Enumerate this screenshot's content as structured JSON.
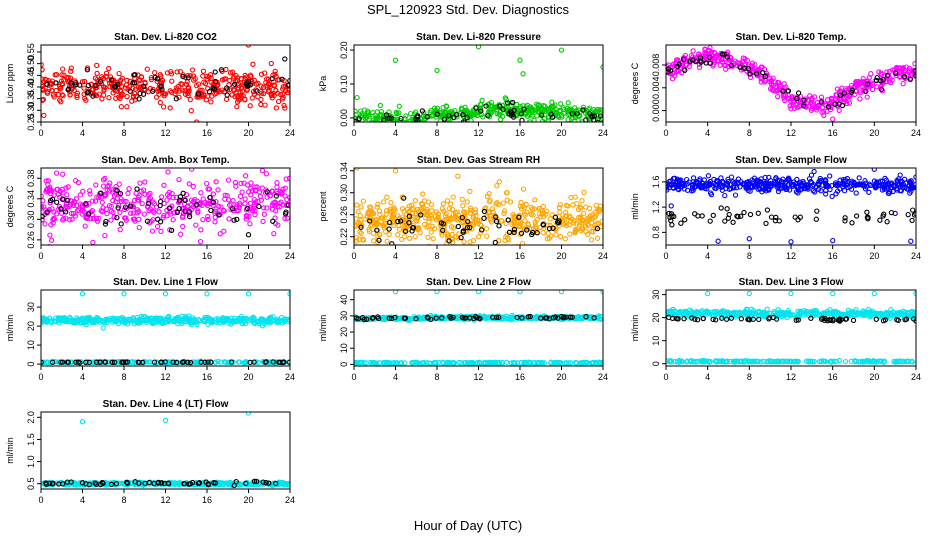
{
  "figure": {
    "title": "SPL_120923  Std. Dev. Diagnostics",
    "xlabel": "Hour of Day (UTC)"
  },
  "chart_data": [
    {
      "type": "scatter",
      "title": "Stan. Dev. Li-820 CO2",
      "ylabel": "Licor ppm",
      "xlim": [
        0,
        24
      ],
      "ylim": [
        0.25,
        0.58
      ],
      "xticks": [
        0,
        4,
        8,
        12,
        16,
        20,
        24
      ],
      "yticks": [
        "0.25",
        "0.30",
        "0.35",
        "0.40",
        "0.45",
        "0.50",
        "0.55"
      ],
      "series": [
        {
          "color": "#ff0000",
          "n": 420,
          "trend": [
            [
              0,
              0.4
            ],
            [
              24,
              0.4
            ]
          ],
          "noise": 0.035,
          "outliers": [
            [
              20,
              0.58
            ],
            [
              15,
              0.25
            ],
            [
              23.5,
              0.31
            ]
          ]
        },
        {
          "color": "#000000",
          "n": 55,
          "trend": [
            [
              0,
              0.4
            ],
            [
              24,
              0.41
            ]
          ],
          "noise": 0.03,
          "outliers": [
            [
              23.5,
              0.52
            ]
          ]
        }
      ]
    },
    {
      "type": "scatter",
      "title": "Stan. Dev. Li-820 Pressure",
      "ylabel": "kPa",
      "xlim": [
        0,
        24
      ],
      "ylim": [
        -0.012,
        0.215
      ],
      "xticks": [
        0,
        4,
        8,
        12,
        16,
        20,
        24
      ],
      "yticks": [
        "0.00",
        "0.10",
        "0.20"
      ],
      "series": [
        {
          "color": "#00cc00",
          "n": 420,
          "trend": [
            [
              0,
              0.005
            ],
            [
              5,
              -0.005
            ],
            [
              10,
              0.01
            ],
            [
              14,
              0.03
            ],
            [
              18,
              0.02
            ],
            [
              24,
              0.01
            ]
          ],
          "noise": 0.012,
          "outliers": [
            [
              0.3,
              0.06
            ],
            [
              4,
              0.17
            ],
            [
              8,
              0.14
            ],
            [
              12,
              0.21
            ],
            [
              16,
              0.17
            ],
            [
              16.3,
              0.13
            ],
            [
              20,
              0.2
            ],
            [
              24,
              0.15
            ]
          ]
        },
        {
          "color": "#000000",
          "n": 55,
          "trend": [
            [
              0,
              0.0
            ],
            [
              5,
              -0.005
            ],
            [
              10,
              0.005
            ],
            [
              14,
              0.02
            ],
            [
              18,
              0.01
            ],
            [
              24,
              0.005
            ]
          ],
          "noise": 0.012,
          "outliers": []
        }
      ]
    },
    {
      "type": "scatter",
      "title": "Stan. Dev. Li-820 Temp.",
      "ylabel": "degrees C",
      "xlim": [
        0,
        24
      ],
      "ylim": [
        -0.002,
        0.0115
      ],
      "xticks": [
        0,
        4,
        8,
        12,
        16,
        20,
        24
      ],
      "yticks": [
        "0.000",
        "0.004",
        "0.008"
      ],
      "series": [
        {
          "color": "#ff00ff",
          "n": 420,
          "trend": [
            [
              0,
              0.007
            ],
            [
              4,
              0.0097
            ],
            [
              8,
              0.0075
            ],
            [
              12,
              0.002
            ],
            [
              15,
              0.0005
            ],
            [
              18,
              0.0035
            ],
            [
              22,
              0.0065
            ],
            [
              24,
              0.0065
            ]
          ],
          "noise": 0.0008,
          "outliers": [
            [
              16,
              -0.0015
            ]
          ]
        },
        {
          "color": "#000000",
          "n": 55,
          "trend": [
            [
              0,
              0.007
            ],
            [
              4,
              0.0095
            ],
            [
              8,
              0.0075
            ],
            [
              12,
              0.002
            ],
            [
              15,
              0.0005
            ],
            [
              18,
              0.0035
            ],
            [
              22,
              0.006
            ],
            [
              24,
              0.006
            ]
          ],
          "noise": 0.0007,
          "outliers": []
        }
      ]
    },
    {
      "type": "scatter",
      "title": "Stan. Dev. Amb. Box Temp.",
      "ylabel": "degrees C",
      "xlim": [
        0,
        24
      ],
      "ylim": [
        0.25,
        0.4
      ],
      "xticks": [
        0,
        4,
        8,
        12,
        16,
        20,
        24
      ],
      "yticks": [
        "0.26",
        "0.30",
        "0.34",
        "0.38"
      ],
      "series": [
        {
          "color": "#ff00ff",
          "n": 420,
          "trend": [
            [
              0,
              0.33
            ],
            [
              24,
              0.33
            ]
          ],
          "noise": 0.025,
          "outliers": [
            [
              5,
              0.255
            ],
            [
              1.5,
              0.39
            ]
          ]
        },
        {
          "color": "#000000",
          "n": 55,
          "trend": [
            [
              0,
              0.32
            ],
            [
              24,
              0.32
            ]
          ],
          "noise": 0.02,
          "outliers": [
            [
              20,
              0.27
            ]
          ]
        }
      ]
    },
    {
      "type": "scatter",
      "title": "Stan. Dev. Gas Stream RH",
      "ylabel": "percent",
      "xlim": [
        0,
        24
      ],
      "ylim": [
        0.205,
        0.345
      ],
      "xticks": [
        0,
        4,
        8,
        12,
        16,
        20,
        24
      ],
      "yticks": [
        "0.22",
        "0.26",
        "0.30",
        "0.34"
      ],
      "series": [
        {
          "color": "#ffa500",
          "n": 520,
          "trend": [
            [
              0,
              0.25
            ],
            [
              24,
              0.25
            ]
          ],
          "noise": 0.02,
          "outliers": [
            [
              0.3,
              0.345
            ],
            [
              4,
              0.34
            ],
            [
              10,
              0.33
            ],
            [
              14,
              0.32
            ]
          ]
        },
        {
          "color": "#000000",
          "n": 55,
          "trend": [
            [
              0,
              0.24
            ],
            [
              24,
              0.245
            ]
          ],
          "noise": 0.018,
          "outliers": []
        }
      ]
    },
    {
      "type": "scatter",
      "title": "Stan. Dev. Sample Flow",
      "ylabel": "ml/min",
      "xlim": [
        0,
        24
      ],
      "ylim": [
        0.6,
        1.82
      ],
      "xticks": [
        0,
        4,
        8,
        12,
        16,
        20,
        24
      ],
      "yticks": [
        "0.8",
        "1.2",
        "1.6"
      ],
      "series": [
        {
          "color": "#0000ff",
          "n": 420,
          "trend": [
            [
              0,
              1.55
            ],
            [
              24,
              1.55
            ]
          ],
          "noise": 0.06,
          "outliers": [
            [
              0.5,
              1.22
            ],
            [
              5,
              0.66
            ],
            [
              8,
              0.7
            ],
            [
              12,
              0.65
            ],
            [
              16,
              0.67
            ],
            [
              22,
              1.1
            ],
            [
              20,
              1.8
            ],
            [
              23.5,
              0.66
            ]
          ]
        },
        {
          "color": "#000000",
          "n": 55,
          "trend": [
            [
              0,
              1.05
            ],
            [
              24,
              1.05
            ]
          ],
          "noise": 0.06,
          "outliers": []
        }
      ]
    },
    {
      "type": "scatter",
      "title": "Stan. Dev. Line 1 Flow",
      "ylabel": "ml/min",
      "xlim": [
        0,
        24
      ],
      "ylim": [
        -1,
        39
      ],
      "xticks": [
        0,
        4,
        8,
        12,
        16,
        20,
        24
      ],
      "yticks": [
        "0",
        "10",
        "20",
        "30"
      ],
      "series": [
        {
          "color": "#00e5ee",
          "n": 420,
          "trend": [
            [
              0,
              23
            ],
            [
              24,
              23
            ]
          ],
          "noise": 0.9,
          "outliers": [
            [
              4,
              37
            ],
            [
              8,
              37
            ],
            [
              12,
              37
            ],
            [
              16,
              37
            ],
            [
              20,
              37
            ],
            [
              24,
              37
            ],
            [
              6,
              19
            ]
          ]
        },
        {
          "color": "#00e5ee",
          "n": 200,
          "trend": [
            [
              0,
              1
            ],
            [
              24,
              1
            ]
          ],
          "noise": 0.15,
          "outliers": []
        },
        {
          "color": "#000000",
          "n": 55,
          "trend": [
            [
              0,
              1
            ],
            [
              24,
              1
            ]
          ],
          "noise": 0.1,
          "outliers": []
        }
      ]
    },
    {
      "type": "scatter",
      "title": "Stan. Dev. Line 2 Flow",
      "ylabel": "ml/min",
      "xlim": [
        0,
        24
      ],
      "ylim": [
        -1,
        46
      ],
      "xticks": [
        0,
        4,
        8,
        12,
        16,
        20,
        24
      ],
      "yticks": [
        "0",
        "10",
        "20",
        "30",
        "40"
      ],
      "series": [
        {
          "color": "#00e5ee",
          "n": 420,
          "trend": [
            [
              0,
              28.5
            ],
            [
              24,
              29
            ]
          ],
          "noise": 0.5,
          "outliers": [
            [
              4,
              45
            ],
            [
              8,
              45
            ],
            [
              12,
              45
            ],
            [
              16,
              45
            ],
            [
              20,
              45
            ],
            [
              24,
              45
            ],
            [
              5.3,
              27
            ]
          ]
        },
        {
          "color": "#00e5ee",
          "n": 200,
          "trend": [
            [
              0,
              1
            ],
            [
              24,
              1
            ]
          ],
          "noise": 0.15,
          "outliers": []
        },
        {
          "color": "#000000",
          "n": 55,
          "trend": [
            [
              0,
              28.5
            ],
            [
              24,
              29
            ]
          ],
          "noise": 0.4,
          "outliers": []
        }
      ]
    },
    {
      "type": "scatter",
      "title": "Stan. Dev. Line 3 Flow",
      "ylabel": "ml/min",
      "xlim": [
        0,
        24
      ],
      "ylim": [
        -1,
        32
      ],
      "xticks": [
        0,
        4,
        8,
        12,
        16,
        20,
        24
      ],
      "yticks": [
        "0",
        "10",
        "20",
        "30"
      ],
      "series": [
        {
          "color": "#00e5ee",
          "n": 420,
          "trend": [
            [
              0,
              22
            ],
            [
              24,
              21.5
            ]
          ],
          "noise": 0.7,
          "outliers": [
            [
              4,
              30.5
            ],
            [
              8,
              30.5
            ],
            [
              12,
              30.5
            ],
            [
              16,
              30.5
            ],
            [
              20,
              30.5
            ],
            [
              24,
              30.5
            ]
          ]
        },
        {
          "color": "#00e5ee",
          "n": 200,
          "trend": [
            [
              0,
              1
            ],
            [
              24,
              1
            ]
          ],
          "noise": 0.15,
          "outliers": []
        },
        {
          "color": "#000000",
          "n": 55,
          "trend": [
            [
              0,
              19.5
            ],
            [
              24,
              19
            ]
          ],
          "noise": 0.4,
          "outliers": []
        }
      ]
    },
    {
      "type": "scatter",
      "title": "Stan. Dev. Line 4 (LT) Flow",
      "ylabel": "ml/min",
      "xlim": [
        0,
        24
      ],
      "ylim": [
        0.38,
        2.12
      ],
      "xticks": [
        0,
        4,
        8,
        12,
        16,
        20,
        24
      ],
      "yticks": [
        "0.5",
        "1.0",
        "1.5",
        "2.0"
      ],
      "series": [
        {
          "color": "#00e5ee",
          "n": 420,
          "trend": [
            [
              0,
              0.5
            ],
            [
              24,
              0.5
            ]
          ],
          "noise": 0.015,
          "outliers": [
            [
              4,
              1.9
            ],
            [
              12,
              1.93
            ],
            [
              20,
              2.1
            ]
          ]
        },
        {
          "color": "#000000",
          "n": 55,
          "trend": [
            [
              0,
              0.51
            ],
            [
              24,
              0.51
            ]
          ],
          "noise": 0.02,
          "outliers": []
        }
      ]
    }
  ]
}
